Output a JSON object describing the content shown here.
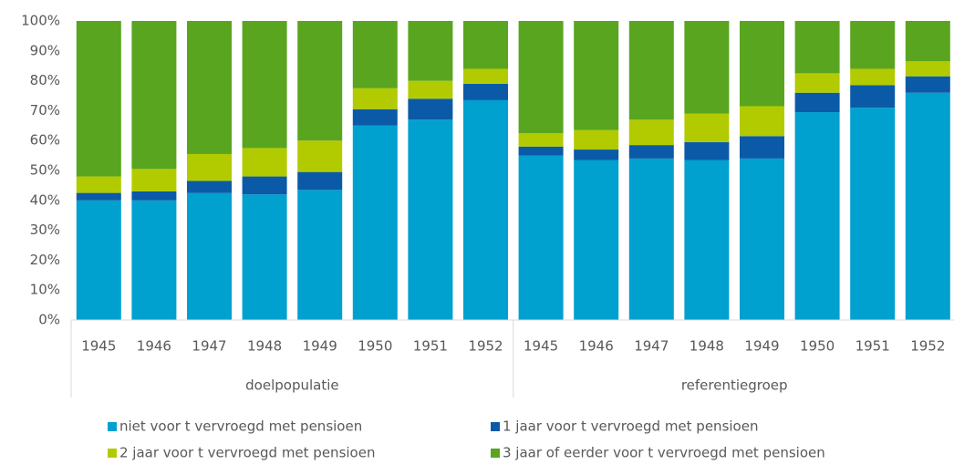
{
  "chart_data": {
    "type": "stacked-bar",
    "groups": [
      {
        "label": "doelpopulatie",
        "categories": [
          "1945",
          "1946",
          "1947",
          "1948",
          "1949",
          "1950",
          "1951",
          "1952"
        ]
      },
      {
        "label": "referentiegroep",
        "categories": [
          "1945",
          "1946",
          "1947",
          "1948",
          "1949",
          "1950",
          "1951",
          "1952"
        ]
      }
    ],
    "series": [
      {
        "name": "niet voor t vervroegd met pensioen",
        "color": "#00a0cf",
        "values": [
          40,
          40,
          42.5,
          42,
          43.5,
          65,
          67,
          73.5,
          55,
          53.5,
          54,
          53.5,
          54,
          69.5,
          71,
          76
        ]
      },
      {
        "name": "1 jaar voor t vervroegd met pensioen",
        "color": "#0b5aa7",
        "values": [
          2.5,
          3,
          4,
          6,
          6,
          5.5,
          7,
          5.5,
          3,
          3.5,
          4.5,
          6,
          7.5,
          6.5,
          7.5,
          5.5
        ]
      },
      {
        "name": "2 jaar voor t vervroegd met pensioen",
        "color": "#b2cb00",
        "values": [
          5.5,
          7.5,
          9,
          9.5,
          10.5,
          7,
          6,
          5,
          4.5,
          6.5,
          8.5,
          9.5,
          10,
          6.5,
          5.5,
          5
        ]
      },
      {
        "name": "3 jaar of eerder voor t vervroegd met pensioen",
        "color": "#59a51f",
        "values": [
          52,
          49.5,
          44.5,
          42.5,
          40,
          22.5,
          20,
          16,
          37.5,
          36.5,
          33,
          31,
          28.5,
          17.5,
          16,
          13.5
        ]
      }
    ],
    "ylim": [
      0,
      100
    ],
    "yticks": [
      {
        "value": 0,
        "label": "0%"
      },
      {
        "value": 10,
        "label": "10%"
      },
      {
        "value": 20,
        "label": "20%"
      },
      {
        "value": 30,
        "label": "30%"
      },
      {
        "value": 40,
        "label": "40%"
      },
      {
        "value": 50,
        "label": "50%"
      },
      {
        "value": 60,
        "label": "60%"
      },
      {
        "value": 70,
        "label": "70%"
      },
      {
        "value": 80,
        "label": "80%"
      },
      {
        "value": 90,
        "label": "90%"
      },
      {
        "value": 100,
        "label": "100%"
      }
    ]
  }
}
